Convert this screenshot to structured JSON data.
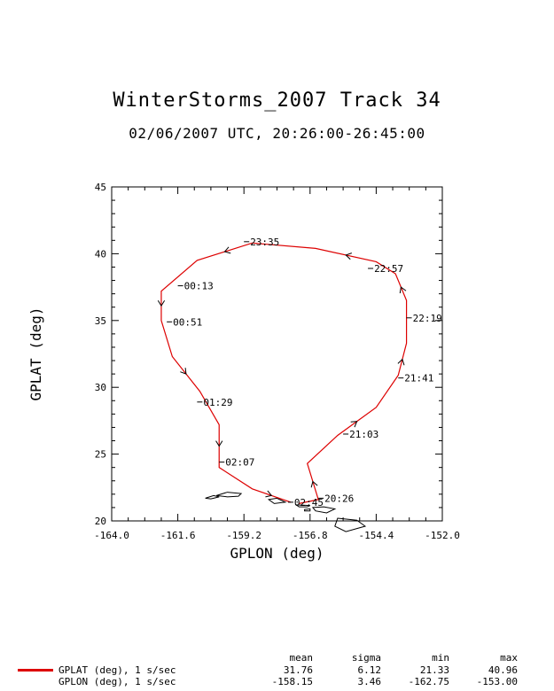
{
  "chart_data": {
    "type": "line",
    "title": "WinterStorms_2007 Track 34",
    "subtitle": "02/06/2007 UTC, 20:26:00-26:45:00",
    "xlabel": "GPLON (deg)",
    "ylabel": "GPLAT (deg)",
    "xlim": [
      -164.0,
      -152.0
    ],
    "ylim": [
      20,
      45
    ],
    "xticks": [
      "-164.0",
      "-161.6",
      "-159.2",
      "-156.8",
      "-154.4",
      "-152.0"
    ],
    "yticks": [
      "20",
      "25",
      "30",
      "35",
      "40",
      "45"
    ],
    "grid": false,
    "series": [
      {
        "color": "#dd0000",
        "x": [
          -157.2,
          -156.5,
          -156.9,
          -155.8,
          -154.4,
          -153.6,
          -153.3,
          -153.3,
          -153.7,
          -154.4,
          -156.6,
          -158.9,
          -160.9,
          -162.2,
          -162.2,
          -161.8,
          -160.8,
          -160.1,
          -160.1,
          -158.9,
          -157.5
        ],
        "y": [
          21.3,
          21.6,
          24.3,
          26.4,
          28.5,
          30.9,
          33.3,
          36.5,
          38.5,
          39.4,
          40.4,
          40.8,
          39.5,
          37.2,
          35.0,
          32.3,
          29.7,
          27.2,
          24.0,
          22.4,
          21.4
        ]
      }
    ],
    "annotations": [
      {
        "text": "20:26",
        "x": -156.5,
        "y": 21.7
      },
      {
        "text": "21:03",
        "x": -155.6,
        "y": 26.5
      },
      {
        "text": "21:41",
        "x": -153.6,
        "y": 30.7
      },
      {
        "text": "22:19",
        "x": -153.3,
        "y": 35.2
      },
      {
        "text": "22:57",
        "x": -154.7,
        "y": 38.9
      },
      {
        "text": "23:35",
        "x": -159.2,
        "y": 40.9
      },
      {
        "text": "00:13",
        "x": -161.6,
        "y": 37.6
      },
      {
        "text": "00:51",
        "x": -162.0,
        "y": 34.9
      },
      {
        "text": "01:29",
        "x": -160.9,
        "y": 28.9
      },
      {
        "text": "02:07",
        "x": -160.1,
        "y": 24.4
      },
      {
        "text": "02:45",
        "x": -157.6,
        "y": 21.4
      }
    ],
    "islands": [
      [
        [
          -160.2,
          21.9
        ],
        [
          -159.8,
          22.15
        ],
        [
          -159.3,
          22.05
        ],
        [
          -159.4,
          21.85
        ],
        [
          -159.8,
          21.8
        ]
      ],
      [
        [
          -160.6,
          21.7
        ],
        [
          -160.3,
          21.9
        ],
        [
          -160.1,
          21.8
        ],
        [
          -160.4,
          21.65
        ]
      ],
      [
        [
          -158.3,
          21.6
        ],
        [
          -158.0,
          21.7
        ],
        [
          -157.7,
          21.4
        ],
        [
          -158.1,
          21.3
        ]
      ],
      [
        [
          -157.3,
          21.2
        ],
        [
          -156.8,
          21.15
        ],
        [
          -156.9,
          21.05
        ],
        [
          -157.2,
          21.05
        ]
      ],
      [
        [
          -156.7,
          21.0
        ],
        [
          -156.3,
          21.05
        ],
        [
          -155.9,
          20.9
        ],
        [
          -156.2,
          20.6
        ],
        [
          -156.6,
          20.75
        ]
      ],
      [
        [
          -157.0,
          20.85
        ],
        [
          -156.8,
          20.9
        ],
        [
          -156.8,
          20.75
        ],
        [
          -157.0,
          20.75
        ]
      ],
      [
        [
          -155.8,
          20.2
        ],
        [
          -155.1,
          20.05
        ],
        [
          -154.8,
          19.6
        ],
        [
          -155.5,
          19.2
        ],
        [
          -155.9,
          19.6
        ]
      ]
    ]
  },
  "legend": {
    "items": [
      {
        "label": "GPLAT (deg), 1 s/sec",
        "color": "#dd0000"
      },
      {
        "label": "GPLON (deg), 1 s/sec",
        "color": "#dd0000"
      }
    ]
  },
  "stats": {
    "headers": [
      "mean",
      "sigma",
      "min",
      "max"
    ],
    "rows": [
      [
        "31.76",
        "6.12",
        "21.33",
        "40.96"
      ],
      [
        "-158.15",
        "3.46",
        "-162.75",
        "-153.00"
      ]
    ]
  }
}
